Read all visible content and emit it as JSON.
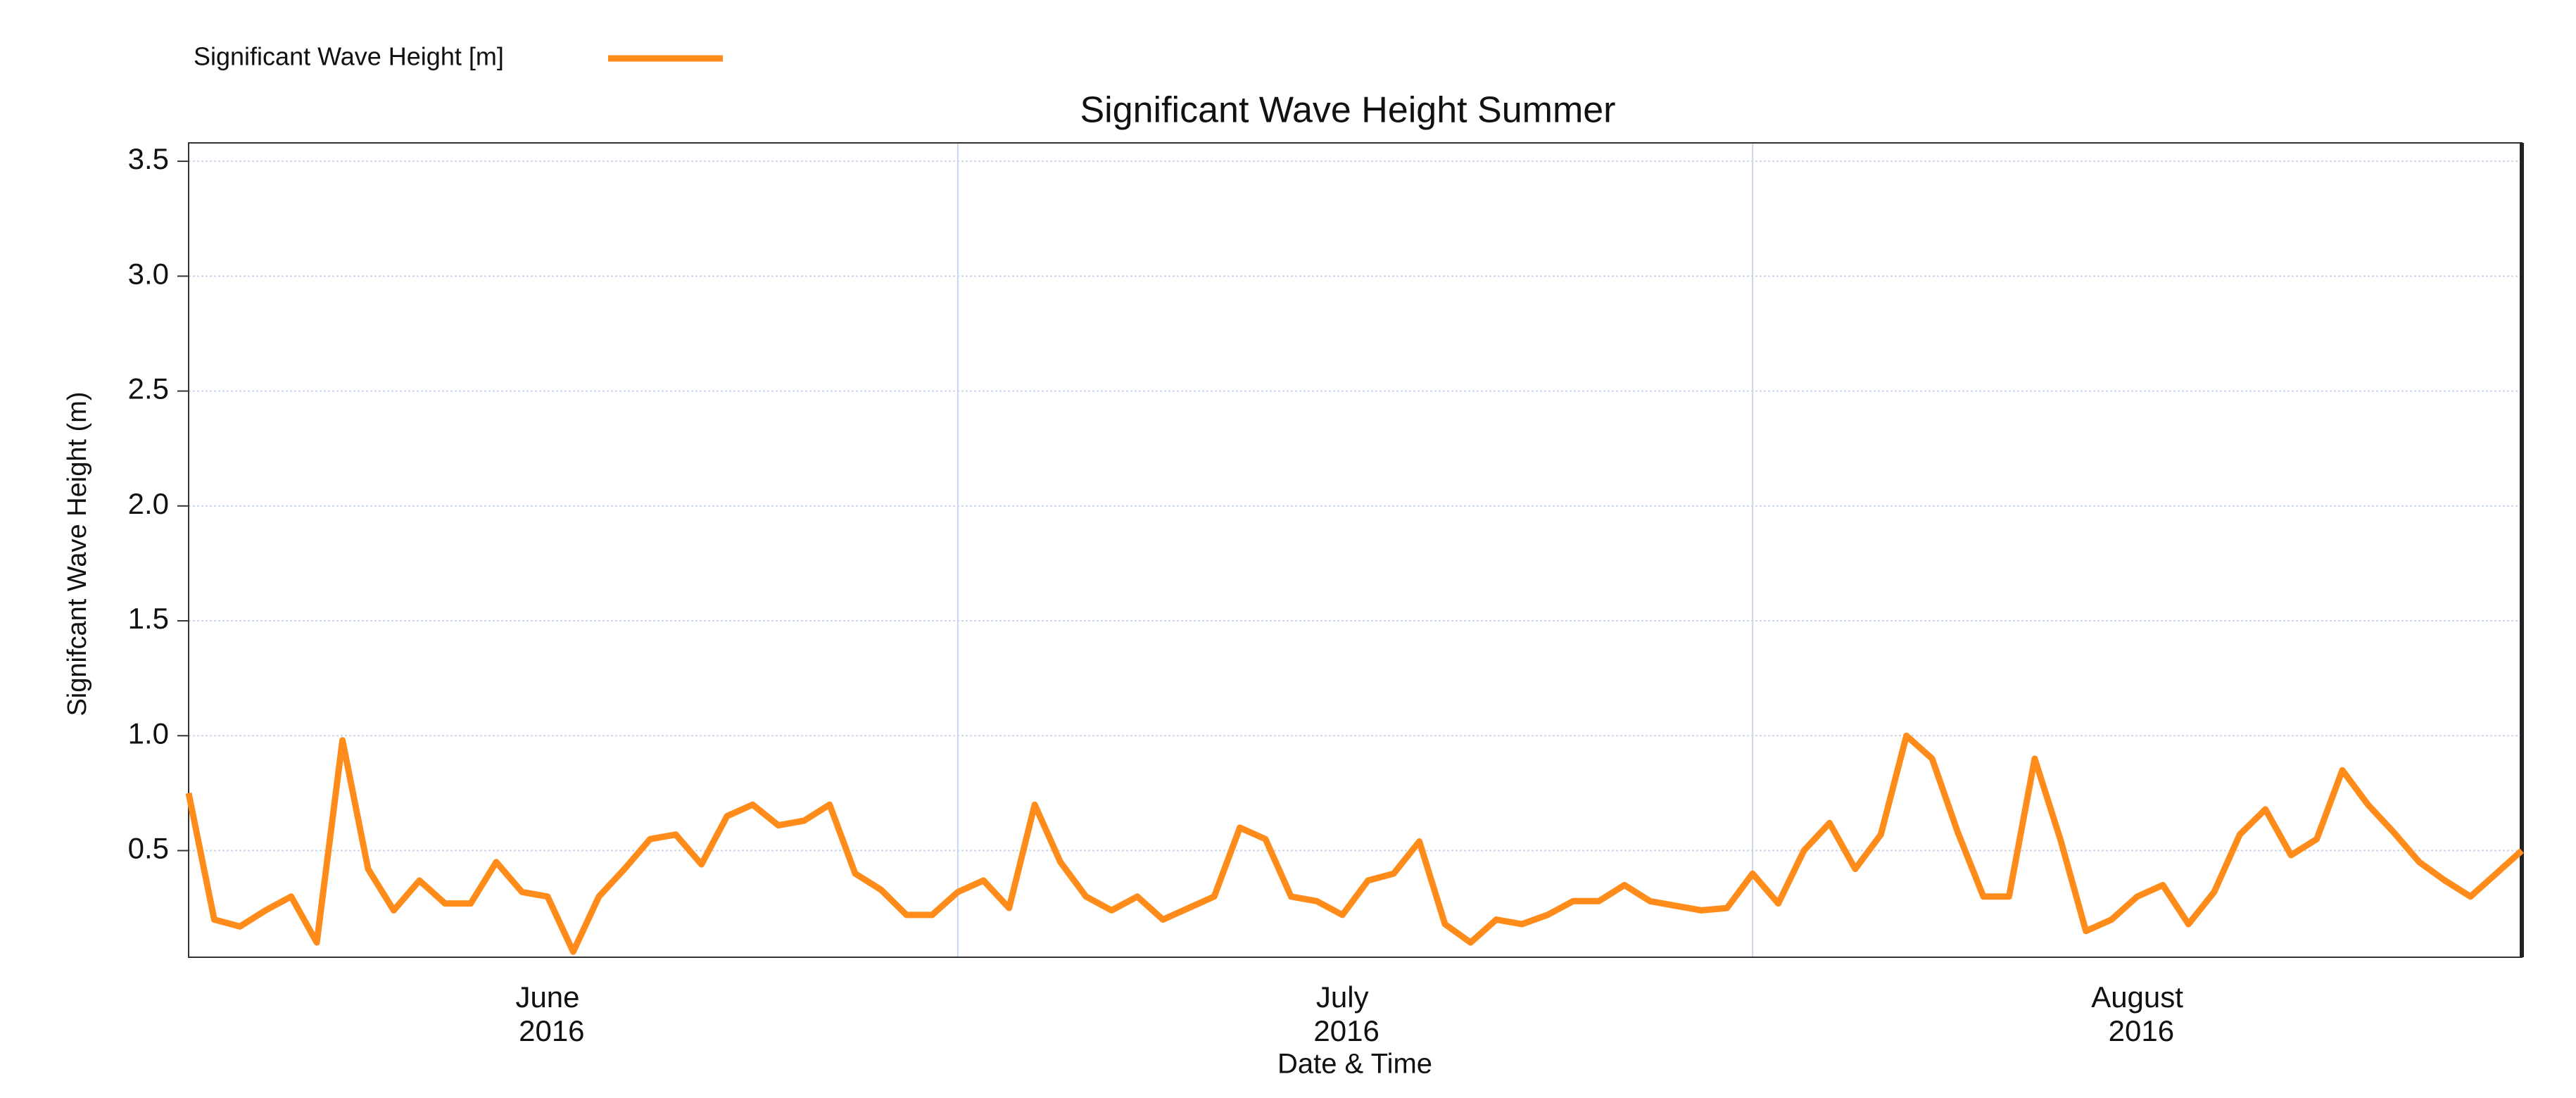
{
  "chart_data": {
    "type": "line",
    "title": "Significant Wave Height Summer",
    "x_label": "Date & Time",
    "y_label": "Signifcant Wave Height (m)",
    "categories": [
      null,
      null,
      null,
      null,
      null,
      null,
      null,
      null,
      null,
      null,
      null,
      null,
      null,
      null,
      "June 2016",
      null,
      null,
      null,
      null,
      null,
      null,
      null,
      null,
      null,
      null,
      null,
      null,
      null,
      null,
      null,
      null,
      null,
      null,
      null,
      null,
      null,
      null,
      null,
      null,
      null,
      null,
      null,
      null,
      null,
      null,
      "July 2016",
      null,
      null,
      null,
      null,
      null,
      null,
      null,
      null,
      null,
      null,
      null,
      null,
      null,
      null,
      null,
      null,
      null,
      null,
      null,
      null,
      null,
      null,
      null,
      null,
      null,
      null,
      null,
      null,
      null,
      null,
      "August 2016",
      null,
      null,
      null,
      null,
      null,
      null,
      null,
      null,
      null,
      null,
      null,
      null,
      null,
      null,
      null
    ],
    "series": [
      {
        "name": "Significant Wave Height [m]",
        "color": "#ff8c1a",
        "values": [
          0.75,
          0.2,
          0.17,
          0.24,
          0.3,
          0.1,
          0.98,
          0.42,
          0.24,
          0.37,
          0.27,
          0.27,
          0.45,
          0.32,
          0.3,
          0.06,
          0.3,
          0.42,
          0.55,
          0.57,
          0.44,
          0.65,
          0.7,
          0.61,
          0.63,
          0.7,
          0.4,
          0.33,
          0.22,
          0.22,
          0.32,
          0.37,
          0.25,
          0.7,
          0.45,
          0.3,
          0.24,
          0.3,
          0.2,
          0.25,
          0.3,
          0.6,
          0.55,
          0.3,
          0.28,
          0.22,
          0.37,
          0.4,
          0.54,
          0.18,
          0.1,
          0.2,
          0.18,
          0.22,
          0.28,
          0.28,
          0.35,
          0.28,
          0.26,
          0.24,
          0.25,
          0.4,
          0.27,
          0.5,
          0.62,
          0.42,
          0.57,
          1.0,
          0.9,
          0.58,
          0.3,
          0.3,
          0.9,
          0.55,
          0.15,
          0.2,
          0.3,
          0.35,
          0.18,
          0.32,
          0.57,
          0.68,
          0.48,
          0.55,
          0.85,
          0.7,
          0.58,
          0.45,
          0.37,
          0.3,
          0.4,
          0.5
        ]
      }
    ],
    "ylim": [
      0.036,
      3.58
    ],
    "yticks": [
      0.5,
      {
        "value": 1,
        "label": "1.0"
      },
      1.5,
      {
        "value": 2,
        "label": "2.0"
      },
      2.5,
      {
        "value": 3,
        "label": "3.0"
      },
      3.5
    ],
    "grid": true
  }
}
